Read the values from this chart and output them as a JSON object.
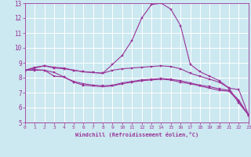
{
  "xlabel": "Windchill (Refroidissement éolien,°C)",
  "bg_color": "#cce8f0",
  "line_color": "#993399",
  "grid_color": "#ffffff",
  "xmin": 0,
  "xmax": 23,
  "ymin": 5,
  "ymax": 13,
  "lines": [
    {
      "x": [
        0,
        1,
        2,
        3,
        4,
        5,
        6,
        7,
        8,
        9,
        10,
        11,
        12,
        13,
        14,
        15,
        16,
        17,
        18,
        19,
        20,
        21,
        22,
        23
      ],
      "y": [
        8.5,
        8.7,
        8.8,
        8.7,
        8.65,
        8.5,
        8.4,
        8.35,
        8.3,
        8.9,
        9.5,
        10.5,
        12.0,
        12.9,
        13.0,
        12.6,
        11.5,
        8.9,
        8.4,
        8.1,
        7.8,
        7.3,
        6.3,
        5.5
      ]
    },
    {
      "x": [
        0,
        1,
        2,
        3,
        4,
        5,
        6,
        7,
        8,
        9,
        10,
        11,
        12,
        13,
        14,
        15,
        16,
        17,
        18,
        19,
        20,
        21,
        22,
        23
      ],
      "y": [
        8.5,
        8.65,
        8.8,
        8.65,
        8.6,
        8.5,
        8.4,
        8.35,
        8.3,
        8.5,
        8.6,
        8.65,
        8.7,
        8.75,
        8.8,
        8.75,
        8.6,
        8.3,
        8.1,
        7.9,
        7.7,
        7.3,
        7.2,
        5.5
      ]
    },
    {
      "x": [
        0,
        1,
        2,
        3,
        4,
        5,
        6,
        7,
        8,
        9,
        10,
        11,
        12,
        13,
        14,
        15,
        16,
        17,
        18,
        19,
        20,
        21,
        22,
        23
      ],
      "y": [
        8.5,
        8.55,
        8.5,
        8.1,
        8.05,
        7.75,
        7.6,
        7.5,
        7.45,
        7.5,
        7.65,
        7.75,
        7.85,
        7.9,
        7.95,
        7.9,
        7.8,
        7.65,
        7.5,
        7.4,
        7.25,
        7.15,
        6.5,
        5.5
      ]
    },
    {
      "x": [
        0,
        1,
        2,
        3,
        4,
        5,
        6,
        7,
        8,
        9,
        10,
        11,
        12,
        13,
        14,
        15,
        16,
        17,
        18,
        19,
        20,
        21,
        22,
        23
      ],
      "y": [
        8.5,
        8.5,
        8.5,
        8.35,
        8.05,
        7.7,
        7.5,
        7.45,
        7.4,
        7.45,
        7.6,
        7.7,
        7.8,
        7.85,
        7.9,
        7.85,
        7.7,
        7.6,
        7.45,
        7.3,
        7.15,
        7.1,
        6.4,
        5.5
      ]
    }
  ],
  "xticks": [
    0,
    1,
    2,
    3,
    4,
    5,
    6,
    7,
    8,
    9,
    10,
    11,
    12,
    13,
    14,
    15,
    16,
    17,
    18,
    19,
    20,
    21,
    22,
    23
  ],
  "yticks": [
    5,
    6,
    7,
    8,
    9,
    10,
    11,
    12,
    13
  ]
}
